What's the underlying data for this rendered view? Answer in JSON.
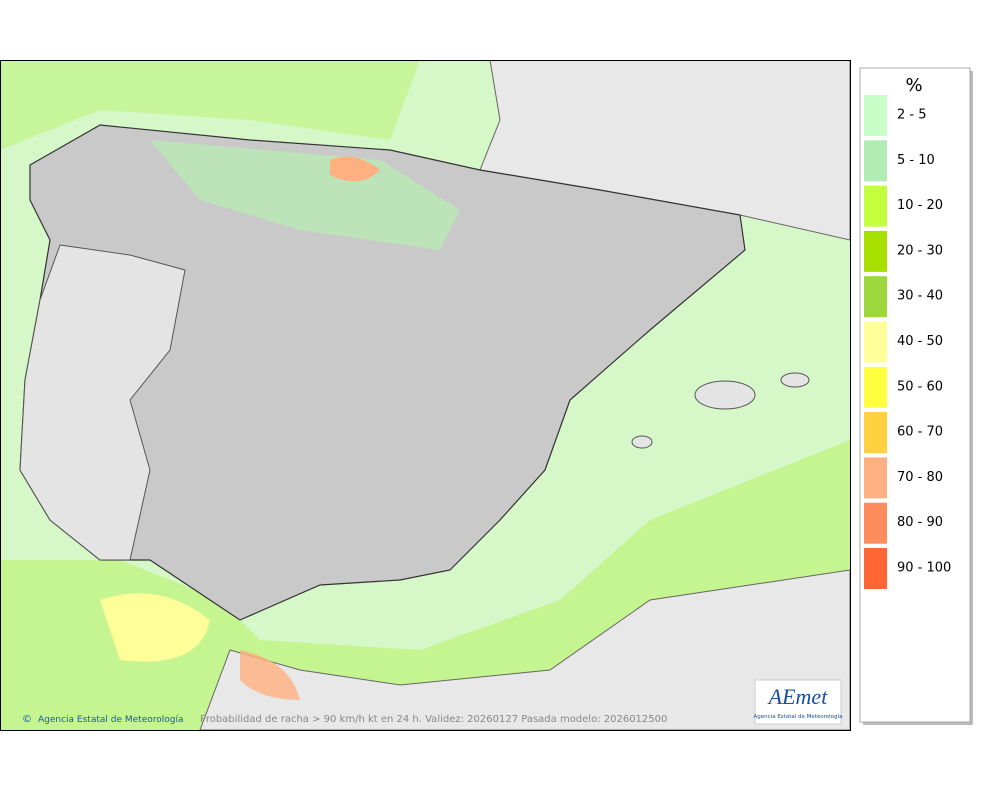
{
  "legend": {
    "title": "%",
    "items": [
      {
        "label": "2 - 5",
        "color": "#c8ffc8"
      },
      {
        "label": "5 - 10",
        "color": "#b0ecb4"
      },
      {
        "label": "10 - 20",
        "color": "#c4ff3c"
      },
      {
        "label": "20 - 30",
        "color": "#a8e000"
      },
      {
        "label": "30 - 40",
        "color": "#9cd83c"
      },
      {
        "label": "40 - 50",
        "color": "#ffff99"
      },
      {
        "label": "50 - 60",
        "color": "#ffff40"
      },
      {
        "label": "60 - 70",
        "color": "#ffd040"
      },
      {
        "label": "70 - 80",
        "color": "#ffb080"
      },
      {
        "label": "80 - 90",
        "color": "#ff8c5c"
      },
      {
        "label": "90 - 100",
        "color": "#ff6633"
      }
    ]
  },
  "footer": {
    "copyright": "Agencia Estatal de Meteorología",
    "caption": "Probabilidad de racha > 90 km/h kt en 24 h. Validez: 20260127 Pasada modelo: 2026012500"
  },
  "logo": {
    "name": "AEmet",
    "subtitle": "Agencia Estatal de Meteorología"
  }
}
